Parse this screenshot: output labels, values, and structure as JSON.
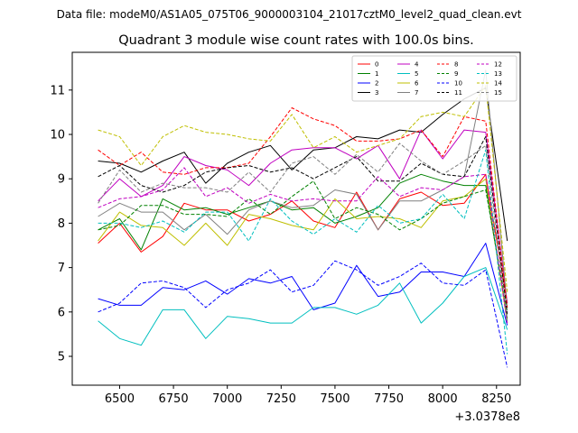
{
  "chart_data": {
    "type": "line",
    "suptitle": "Data file: modeM0/AS1A05_075T06_9000003104_21017cztM0_level2_quad_clean.evt",
    "title": "Quadrant 3 module wise count rates with 100.0s bins.",
    "xlabel": "",
    "ylabel": "",
    "x_offset_label": "+3.0378e8",
    "xlim": [
      6280,
      8360
    ],
    "ylim": [
      4.35,
      11.85
    ],
    "xticks": [
      6500,
      6750,
      7000,
      7250,
      7500,
      7750,
      8000,
      8250
    ],
    "yticks": [
      5,
      6,
      7,
      8,
      9,
      10,
      11
    ],
    "x": [
      6400,
      6500,
      6600,
      6700,
      6800,
      6900,
      7000,
      7100,
      7200,
      7300,
      7400,
      7500,
      7600,
      7700,
      7800,
      7900,
      8000,
      8100,
      8200,
      8300
    ],
    "series": [
      {
        "name": "0",
        "color": "#ff0000",
        "dash": "solid",
        "values": [
          7.55,
          8.0,
          7.35,
          7.7,
          8.45,
          8.3,
          8.3,
          8.05,
          8.2,
          8.5,
          8.05,
          7.9,
          8.7,
          7.85,
          8.55,
          8.7,
          8.4,
          8.45,
          9.1,
          6.2
        ]
      },
      {
        "name": "1",
        "color": "#008000",
        "dash": "solid",
        "values": [
          7.85,
          8.1,
          7.4,
          8.55,
          8.3,
          8.35,
          8.2,
          8.35,
          8.5,
          8.3,
          8.35,
          8.0,
          8.15,
          8.35,
          8.9,
          9.1,
          8.95,
          8.85,
          8.85,
          5.85
        ]
      },
      {
        "name": "2",
        "color": "#0000ff",
        "dash": "solid",
        "values": [
          6.3,
          6.15,
          6.15,
          6.55,
          6.5,
          6.7,
          6.4,
          6.75,
          6.65,
          6.8,
          6.05,
          6.2,
          7.05,
          6.35,
          6.45,
          6.9,
          6.9,
          6.8,
          7.55,
          5.7
        ]
      },
      {
        "name": "3",
        "color": "#000000",
        "dash": "solid",
        "values": [
          9.4,
          9.35,
          9.15,
          9.4,
          9.6,
          8.9,
          9.35,
          9.6,
          9.75,
          9.2,
          9.65,
          9.7,
          9.95,
          9.9,
          10.1,
          10.05,
          10.45,
          10.8,
          11.05,
          7.6
        ]
      },
      {
        "name": "4",
        "color": "#c000c0",
        "dash": "solid",
        "values": [
          8.5,
          9.0,
          8.6,
          8.85,
          9.5,
          9.3,
          9.2,
          8.85,
          9.35,
          9.65,
          9.7,
          9.7,
          9.45,
          9.75,
          9.0,
          10.1,
          9.45,
          10.1,
          10.05,
          6.2
        ]
      },
      {
        "name": "5",
        "color": "#00bfbf",
        "dash": "solid",
        "values": [
          5.8,
          5.4,
          5.25,
          6.05,
          6.05,
          5.4,
          5.9,
          5.85,
          5.75,
          5.75,
          6.1,
          6.1,
          5.95,
          6.15,
          6.65,
          5.75,
          6.2,
          6.8,
          7.0,
          5.6
        ]
      },
      {
        "name": "6",
        "color": "#bfbf00",
        "dash": "solid",
        "values": [
          7.6,
          8.25,
          7.95,
          7.9,
          7.5,
          8.0,
          7.5,
          8.2,
          8.1,
          7.95,
          7.85,
          8.55,
          8.1,
          8.15,
          8.1,
          7.9,
          8.5,
          8.6,
          9.0,
          5.75
        ]
      },
      {
        "name": "7",
        "color": "#808080",
        "dash": "solid",
        "values": [
          8.15,
          8.45,
          8.25,
          8.25,
          7.85,
          8.2,
          7.75,
          8.3,
          8.5,
          8.35,
          8.4,
          8.75,
          8.65,
          7.85,
          8.5,
          8.5,
          8.75,
          9.05,
          11.45,
          6.1
        ]
      },
      {
        "name": "8",
        "color": "#ff0000",
        "dash": "dashed",
        "values": [
          9.65,
          9.3,
          9.6,
          9.15,
          9.1,
          9.25,
          9.25,
          9.35,
          9.95,
          10.6,
          10.35,
          10.2,
          9.85,
          9.85,
          9.9,
          10.1,
          9.5,
          10.4,
          10.3,
          6.1
        ]
      },
      {
        "name": "9",
        "color": "#008000",
        "dash": "dashed",
        "values": [
          7.85,
          7.95,
          8.4,
          8.4,
          8.2,
          8.2,
          8.15,
          8.55,
          8.2,
          8.6,
          8.95,
          8.1,
          8.35,
          8.2,
          7.85,
          8.1,
          8.45,
          8.6,
          8.75,
          6.0
        ]
      },
      {
        "name": "10",
        "color": "#0000ff",
        "dash": "dashed",
        "values": [
          6.0,
          6.2,
          6.65,
          6.7,
          6.55,
          6.1,
          6.5,
          6.65,
          6.95,
          6.45,
          6.6,
          7.15,
          6.95,
          6.6,
          6.8,
          7.1,
          6.65,
          6.6,
          6.95,
          4.75
        ]
      },
      {
        "name": "11",
        "color": "#000000",
        "dash": "dashed",
        "values": [
          9.05,
          9.3,
          8.85,
          8.7,
          8.85,
          9.15,
          9.25,
          9.3,
          9.15,
          9.25,
          9.0,
          9.25,
          9.5,
          8.95,
          8.95,
          9.35,
          9.1,
          9.05,
          9.95,
          5.95
        ]
      },
      {
        "name": "12",
        "color": "#c000c0",
        "dash": "dashed",
        "values": [
          8.35,
          8.55,
          8.6,
          8.75,
          9.25,
          8.6,
          8.8,
          8.45,
          8.65,
          8.5,
          8.55,
          8.5,
          8.5,
          9.05,
          8.6,
          8.8,
          8.75,
          9.05,
          9.1,
          5.75
        ]
      },
      {
        "name": "13",
        "color": "#00bfbf",
        "dash": "dashed",
        "values": [
          8.0,
          8.0,
          7.9,
          8.05,
          7.8,
          8.25,
          8.25,
          7.6,
          8.55,
          8.05,
          7.75,
          8.1,
          7.8,
          8.4,
          8.0,
          8.1,
          8.65,
          8.1,
          9.65,
          5.05
        ]
      },
      {
        "name": "14",
        "color": "#bfbf00",
        "dash": "dashed",
        "values": [
          10.1,
          9.95,
          9.3,
          9.95,
          10.2,
          10.05,
          10.0,
          9.9,
          9.85,
          10.45,
          9.7,
          9.95,
          9.6,
          9.75,
          9.9,
          10.4,
          10.5,
          10.4,
          11.1,
          6.45
        ]
      },
      {
        "name": "15",
        "color": "#808080",
        "dash": "dashed",
        "values": [
          8.45,
          9.2,
          8.7,
          8.9,
          8.8,
          8.8,
          8.7,
          9.15,
          8.7,
          9.35,
          9.5,
          9.1,
          9.55,
          9.15,
          9.8,
          9.4,
          9.1,
          9.4,
          9.75,
          5.8
        ]
      }
    ],
    "legend": {
      "location": "top-right",
      "columns": 4
    },
    "grid": false
  }
}
